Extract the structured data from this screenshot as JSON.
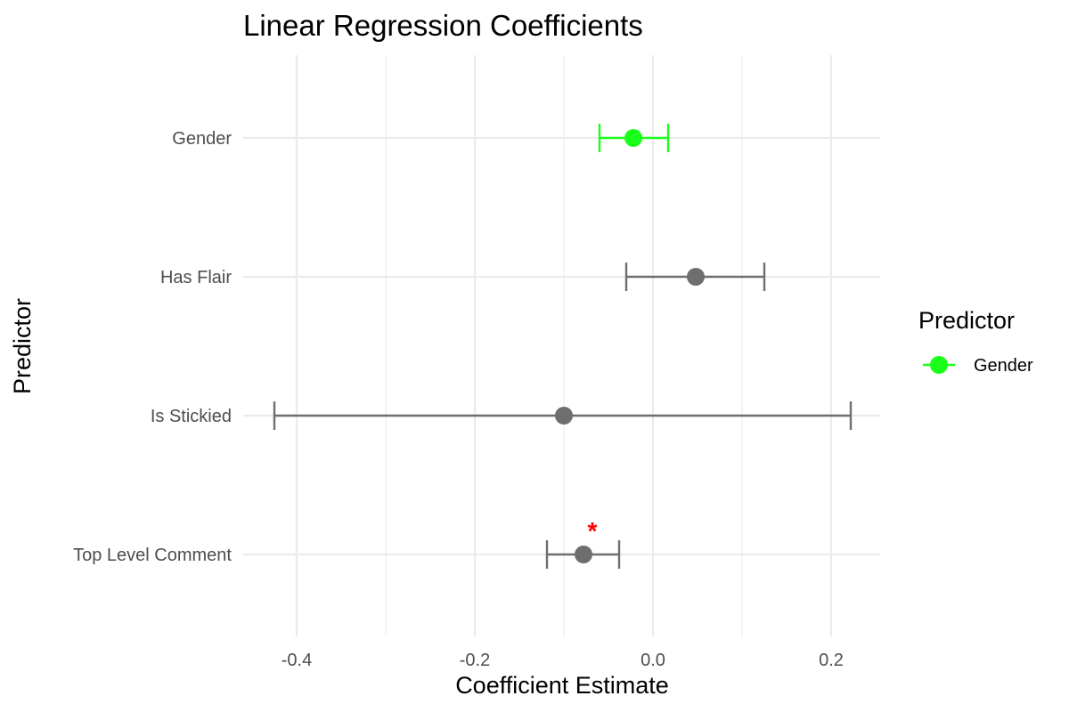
{
  "chart_data": {
    "type": "dot-and-whisker",
    "title": "Linear Regression Coefficients",
    "xlabel": "Coefficient Estimate",
    "ylabel": "Predictor",
    "xlim": [
      -0.46,
      0.255
    ],
    "x_ticks": [
      -0.4,
      -0.2,
      0.0,
      0.2
    ],
    "x_tick_labels": [
      "-0.4",
      "-0.2",
      "0.0",
      "0.2"
    ],
    "grid": true,
    "legend": {
      "title": "Predictor",
      "position": "right",
      "entries": [
        {
          "label": "Gender",
          "color": "#1aff1a"
        }
      ]
    },
    "default_color": "#6e6e6e",
    "significance_color": "#ff0000",
    "significance_marker": "*",
    "predictors": [
      {
        "name": "Gender",
        "estimate": -0.022,
        "ci_low": -0.06,
        "ci_high": 0.017,
        "highlighted": true,
        "significant": false
      },
      {
        "name": "Has Flair",
        "estimate": 0.048,
        "ci_low": -0.03,
        "ci_high": 0.125,
        "highlighted": false,
        "significant": false
      },
      {
        "name": "Is Stickied",
        "estimate": -0.1,
        "ci_low": -0.425,
        "ci_high": 0.222,
        "highlighted": false,
        "significant": false
      },
      {
        "name": "Top Level Comment",
        "estimate": -0.078,
        "ci_low": -0.119,
        "ci_high": -0.038,
        "highlighted": false,
        "significant": true
      }
    ]
  }
}
